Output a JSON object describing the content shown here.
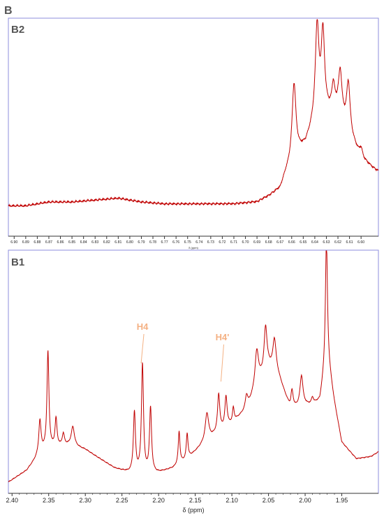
{
  "figure": {
    "label": "B"
  },
  "colors": {
    "spectrum": "#c00000",
    "frame": "#8e8edc",
    "annotation": "#f4b183",
    "axis": "#333333"
  },
  "chart_data": [
    {
      "type": "line",
      "panel": "B2",
      "xlabel": "δ (ppm)",
      "xlim": [
        6.905,
        6.585
      ],
      "x_reversed": true,
      "ylim": [
        -0.05,
        1.05
      ],
      "ticks": [
        "6.90",
        "6.89",
        "6.88",
        "6.87",
        "6.86",
        "6.85",
        "6.84",
        "6.83",
        "6.82",
        "6.81",
        "6.80",
        "6.79",
        "6.78",
        "6.77",
        "6.76",
        "6.75",
        "6.74",
        "6.73",
        "6.72",
        "6.71",
        "6.70",
        "6.69",
        "6.68",
        "6.67",
        "6.66",
        "6.65",
        "6.64",
        "6.63",
        "6.62",
        "6.61",
        "6.60"
      ],
      "baseline": [
        [
          6.905,
          0.08
        ],
        [
          6.89,
          0.08
        ],
        [
          6.87,
          0.1
        ],
        [
          6.85,
          0.1
        ],
        [
          6.83,
          0.11
        ],
        [
          6.81,
          0.12
        ],
        [
          6.79,
          0.1
        ],
        [
          6.77,
          0.09
        ],
        [
          6.75,
          0.09
        ],
        [
          6.73,
          0.09
        ],
        [
          6.71,
          0.09
        ],
        [
          6.69,
          0.1
        ],
        [
          6.68,
          0.13
        ],
        [
          6.67,
          0.17
        ],
        [
          6.665,
          0.25
        ],
        [
          6.655,
          0.35
        ],
        [
          6.648,
          0.4
        ],
        [
          6.64,
          0.52
        ],
        [
          6.635,
          0.55
        ],
        [
          6.62,
          0.58
        ],
        [
          6.61,
          0.45
        ],
        [
          6.6,
          0.33
        ],
        [
          6.59,
          0.28
        ],
        [
          6.585,
          0.26
        ]
      ],
      "peaks": [
        {
          "x": 6.658,
          "h": 0.4,
          "w": 0.002
        },
        {
          "x": 6.638,
          "h": 0.48,
          "w": 0.0018
        },
        {
          "x": 6.633,
          "h": 0.42,
          "w": 0.0018
        },
        {
          "x": 6.624,
          "h": 0.13,
          "w": 0.0015
        },
        {
          "x": 6.618,
          "h": 0.22,
          "w": 0.0017
        },
        {
          "x": 6.611,
          "h": 0.26,
          "w": 0.0018
        },
        {
          "x": 6.6,
          "h": 0.05,
          "w": 0.0015
        }
      ]
    },
    {
      "type": "line",
      "panel": "B1",
      "xlabel": "δ (ppm)",
      "xlim": [
        2.405,
        1.9
      ],
      "x_reversed": true,
      "ylim": [
        -0.02,
        1.0
      ],
      "ticks": [
        "2.40",
        "2.35",
        "2.30",
        "2.25",
        "2.20",
        "2.15",
        "2.10",
        "2.05",
        "2.00",
        "1.95"
      ],
      "baseline": [
        [
          2.405,
          0.01
        ],
        [
          2.38,
          0.06
        ],
        [
          2.36,
          0.14
        ],
        [
          2.34,
          0.16
        ],
        [
          2.32,
          0.17
        ],
        [
          2.3,
          0.15
        ],
        [
          2.28,
          0.11
        ],
        [
          2.26,
          0.07
        ],
        [
          2.24,
          0.05
        ],
        [
          2.22,
          0.04
        ],
        [
          2.2,
          0.05
        ],
        [
          2.18,
          0.07
        ],
        [
          2.16,
          0.11
        ],
        [
          2.14,
          0.17
        ],
        [
          2.12,
          0.22
        ],
        [
          2.1,
          0.26
        ],
        [
          2.08,
          0.32
        ],
        [
          2.06,
          0.45
        ],
        [
          2.05,
          0.5
        ],
        [
          2.04,
          0.5
        ],
        [
          2.02,
          0.32
        ],
        [
          2.0,
          0.34
        ],
        [
          1.99,
          0.34
        ],
        [
          1.98,
          0.36
        ],
        [
          1.97,
          0.55
        ],
        [
          1.96,
          0.35
        ],
        [
          1.95,
          0.18
        ],
        [
          1.93,
          0.11
        ],
        [
          1.91,
          0.12
        ],
        [
          1.9,
          0.14
        ]
      ],
      "peaks": [
        {
          "x": 2.362,
          "h": 0.14,
          "w": 0.0018
        },
        {
          "x": 2.351,
          "h": 0.42,
          "w": 0.0016
        },
        {
          "x": 2.34,
          "h": 0.12,
          "w": 0.0016
        },
        {
          "x": 2.33,
          "h": 0.05,
          "w": 0.0018
        },
        {
          "x": 2.317,
          "h": 0.08,
          "w": 0.0025
        },
        {
          "x": 2.233,
          "h": 0.26,
          "w": 0.0017
        },
        {
          "x": 2.222,
          "h": 0.47,
          "w": 0.0017
        },
        {
          "x": 2.211,
          "h": 0.28,
          "w": 0.0017
        },
        {
          "x": 2.172,
          "h": 0.14,
          "w": 0.0014
        },
        {
          "x": 2.161,
          "h": 0.11,
          "w": 0.0014
        },
        {
          "x": 2.134,
          "h": 0.12,
          "w": 0.0028
        },
        {
          "x": 2.118,
          "h": 0.16,
          "w": 0.0018
        },
        {
          "x": 2.108,
          "h": 0.13,
          "w": 0.0018
        },
        {
          "x": 2.098,
          "h": 0.06,
          "w": 0.0014
        },
        {
          "x": 2.08,
          "h": 0.06,
          "w": 0.002
        },
        {
          "x": 2.066,
          "h": 0.16,
          "w": 0.003
        },
        {
          "x": 2.054,
          "h": 0.19,
          "w": 0.0024
        },
        {
          "x": 2.042,
          "h": 0.12,
          "w": 0.0024
        },
        {
          "x": 2.018,
          "h": 0.08,
          "w": 0.002
        },
        {
          "x": 2.005,
          "h": 0.13,
          "w": 0.0024
        },
        {
          "x": 1.99,
          "h": 0.03,
          "w": 0.0018
        },
        {
          "x": 1.971,
          "h": 0.52,
          "w": 0.0016
        }
      ],
      "annotations": [
        {
          "text": "H4",
          "x": 2.222
        },
        {
          "text": "H4'",
          "x": 2.113
        }
      ]
    }
  ]
}
